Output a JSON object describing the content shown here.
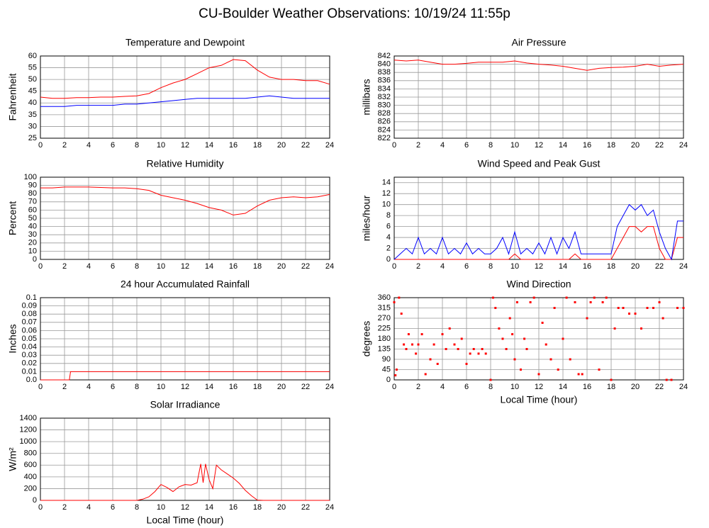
{
  "title": "CU-Boulder Weather Observations: 10/19/24 11:55p",
  "chart_data": [
    {
      "type": "line",
      "title": "Temperature and Dewpoint",
      "y_label": "Fahrenheit",
      "x": [
        0,
        1,
        2,
        3,
        4,
        5,
        6,
        7,
        8,
        9,
        10,
        11,
        12,
        13,
        14,
        15,
        16,
        17,
        18,
        19,
        20,
        21,
        22,
        23,
        24
      ],
      "series": [
        {
          "color": "#ff0000",
          "values": [
            42.5,
            42,
            42,
            42.3,
            42.3,
            42.5,
            42.5,
            42.8,
            43,
            44,
            46.5,
            48.5,
            50,
            52.5,
            55,
            56,
            58.5,
            58,
            54,
            51,
            50,
            50,
            49.5,
            49.5,
            48
          ]
        },
        {
          "color": "#0000ff",
          "values": [
            38.5,
            38.5,
            38.5,
            39,
            39,
            39,
            39,
            39.5,
            39.5,
            40,
            40.5,
            41,
            41.5,
            42,
            42,
            42,
            42,
            42,
            42.5,
            43,
            42.5,
            42,
            42,
            42,
            42
          ]
        }
      ],
      "xlim": [
        0,
        24
      ],
      "xticks": [
        0,
        2,
        4,
        6,
        8,
        10,
        12,
        14,
        16,
        18,
        20,
        22,
        24
      ],
      "ylim": [
        25,
        60
      ],
      "yticks": [
        25,
        30,
        35,
        40,
        45,
        50,
        55,
        60
      ],
      "grid": true
    },
    {
      "type": "line",
      "title": "Air Pressure",
      "y_label": "millibars",
      "x": [
        0,
        1,
        2,
        3,
        4,
        5,
        6,
        7,
        8,
        9,
        10,
        11,
        12,
        13,
        14,
        15,
        16,
        17,
        18,
        19,
        20,
        21,
        22,
        23,
        24
      ],
      "series": [
        {
          "color": "#ff0000",
          "values": [
            841,
            840.8,
            841,
            840.5,
            840,
            840,
            840.2,
            840.5,
            840.5,
            840.5,
            840.8,
            840.3,
            840,
            839.8,
            839.5,
            839,
            838.5,
            839,
            839.2,
            839.3,
            839.5,
            840,
            839.5,
            839.8,
            840
          ]
        }
      ],
      "xlim": [
        0,
        24
      ],
      "xticks": [
        0,
        2,
        4,
        6,
        8,
        10,
        12,
        14,
        16,
        18,
        20,
        22,
        24
      ],
      "ylim": [
        822,
        842
      ],
      "yticks": [
        822,
        824,
        826,
        828,
        830,
        832,
        834,
        836,
        838,
        840,
        842
      ],
      "grid": true
    },
    {
      "type": "line",
      "title": "Relative Humidity",
      "y_label": "Percent",
      "x": [
        0,
        1,
        2,
        3,
        4,
        5,
        6,
        7,
        8,
        9,
        10,
        11,
        12,
        13,
        14,
        15,
        16,
        17,
        18,
        19,
        20,
        21,
        22,
        23,
        24
      ],
      "series": [
        {
          "color": "#ff0000",
          "values": [
            87,
            87,
            88,
            88,
            88,
            87.5,
            87,
            87,
            86,
            84,
            78,
            75,
            72,
            68,
            63,
            60,
            54,
            56,
            65,
            72,
            75,
            76,
            75,
            76,
            79
          ]
        }
      ],
      "xlim": [
        0,
        24
      ],
      "xticks": [
        0,
        2,
        4,
        6,
        8,
        10,
        12,
        14,
        16,
        18,
        20,
        22,
        24
      ],
      "ylim": [
        0,
        100
      ],
      "yticks": [
        0,
        10,
        20,
        30,
        40,
        50,
        60,
        70,
        80,
        90,
        100
      ],
      "grid": true
    },
    {
      "type": "line",
      "title": "Wind Speed and Peak Gust",
      "y_label": "miles/hour",
      "x": [
        0,
        0.5,
        1,
        1.5,
        2,
        2.5,
        3,
        3.5,
        4,
        4.5,
        5,
        5.5,
        6,
        6.5,
        7,
        7.5,
        8,
        8.5,
        9,
        9.5,
        10,
        10.5,
        11,
        11.5,
        12,
        12.5,
        13,
        13.5,
        14,
        14.5,
        15,
        15.5,
        16,
        16.5,
        17,
        17.5,
        18,
        18.5,
        19,
        19.5,
        20,
        20.5,
        21,
        21.5,
        22,
        22.5,
        23,
        23.5,
        24
      ],
      "series": [
        {
          "color": "#ff0000",
          "values": [
            0,
            0,
            0,
            0,
            0,
            0,
            0,
            0,
            0,
            0,
            0,
            0,
            0,
            0,
            0,
            0,
            0,
            0,
            0,
            0,
            1,
            0,
            0,
            0,
            0,
            0,
            0,
            0,
            0,
            0,
            1,
            0,
            0,
            0,
            0,
            0,
            0,
            2,
            4,
            6,
            6,
            5,
            6,
            6,
            2,
            0,
            0,
            4,
            4
          ]
        },
        {
          "color": "#0000ff",
          "values": [
            0,
            1,
            2,
            1,
            4,
            1,
            2,
            1,
            4,
            1,
            2,
            1,
            3,
            1,
            2,
            1,
            1,
            2,
            4,
            1,
            5,
            1,
            2,
            1,
            3,
            1,
            4,
            1,
            4,
            2,
            5,
            1,
            1,
            1,
            1,
            1,
            1,
            6,
            8,
            10,
            9,
            10,
            8,
            9,
            5,
            2,
            0,
            7,
            7
          ]
        }
      ],
      "xlim": [
        0,
        24
      ],
      "xticks": [
        0,
        2,
        4,
        6,
        8,
        10,
        12,
        14,
        16,
        18,
        20,
        22,
        24
      ],
      "ylim": [
        0,
        15
      ],
      "yticks": [
        0,
        2,
        4,
        6,
        8,
        10,
        12,
        14
      ],
      "grid": true
    },
    {
      "type": "line",
      "title": "24 hour Accumulated Rainfall",
      "y_label": "Inches",
      "x": [
        0,
        2.4,
        2.5,
        24
      ],
      "series": [
        {
          "color": "#ff0000",
          "values": [
            0,
            0,
            0.01,
            0.01
          ]
        }
      ],
      "xlim": [
        0,
        24
      ],
      "xticks": [
        0,
        2,
        4,
        6,
        8,
        10,
        12,
        14,
        16,
        18,
        20,
        22,
        24
      ],
      "ylim": [
        0,
        0.1
      ],
      "yticks": [
        {
          "value": 0,
          "label": "0.0"
        },
        0.01,
        0.02,
        0.03,
        0.04,
        0.05,
        0.06,
        0.07,
        0.08,
        0.09,
        0.1
      ],
      "grid": true
    },
    {
      "type": "scatter",
      "title": "Wind Direction",
      "y_label": "degrees",
      "x_label": "Local Time (hour)",
      "x": [
        0,
        0.1,
        0.2,
        0.4,
        0.6,
        0.8,
        1,
        1.2,
        1.5,
        1.8,
        2,
        2.3,
        2.6,
        3,
        3.3,
        3.6,
        4,
        4.3,
        4.6,
        5,
        5.3,
        5.6,
        6,
        6.3,
        6.6,
        7,
        7.3,
        7.6,
        8,
        8.2,
        8.4,
        8.7,
        9,
        9.3,
        9.6,
        9.8,
        10,
        10.2,
        10.5,
        10.8,
        11,
        11.3,
        11.6,
        12,
        12.3,
        12.6,
        13,
        13.3,
        13.6,
        14,
        14.3,
        14.6,
        15,
        15.3,
        15.6,
        16,
        16.3,
        16.6,
        17,
        17.3,
        17.6,
        18,
        18.3,
        18.6,
        19,
        19.5,
        20,
        20.5,
        21,
        21.5,
        22,
        22.3,
        22.6,
        23,
        23.5,
        24
      ],
      "series": [
        {
          "color": "#ff0000",
          "values": [
            340,
            20,
            45,
            360,
            290,
            155,
            135,
            200,
            155,
            115,
            155,
            200,
            25,
            90,
            155,
            70,
            200,
            135,
            225,
            155,
            135,
            180,
            70,
            115,
            135,
            115,
            135,
            115,
            0,
            360,
            315,
            225,
            180,
            135,
            270,
            200,
            90,
            340,
            45,
            180,
            135,
            340,
            360,
            25,
            250,
            155,
            90,
            315,
            45,
            180,
            360,
            90,
            340,
            25,
            25,
            270,
            340,
            360,
            45,
            340,
            360,
            0,
            225,
            315,
            315,
            290,
            290,
            225,
            315,
            315,
            340,
            270,
            0,
            0,
            315,
            315
          ]
        }
      ],
      "xlim": [
        0,
        24
      ],
      "xticks": [
        0,
        2,
        4,
        6,
        8,
        10,
        12,
        14,
        16,
        18,
        20,
        22,
        24
      ],
      "ylim": [
        0,
        360
      ],
      "yticks": [
        0,
        45,
        90,
        135,
        180,
        225,
        270,
        315,
        360
      ],
      "grid": true
    },
    {
      "type": "line",
      "title": "Solar Irradiance",
      "y_label": "W/m²",
      "x_label": "Local Time (hour)",
      "x": [
        0,
        8,
        8.5,
        9,
        9.5,
        10,
        10.5,
        11,
        11.5,
        12,
        12.5,
        13,
        13.3,
        13.5,
        13.7,
        14,
        14.3,
        14.6,
        15,
        15.5,
        16,
        16.5,
        17,
        17.5,
        18,
        18.5,
        24
      ],
      "series": [
        {
          "color": "#ff0000",
          "values": [
            0,
            0,
            20,
            60,
            150,
            270,
            220,
            150,
            230,
            270,
            260,
            300,
            620,
            300,
            620,
            350,
            200,
            600,
            520,
            450,
            380,
            290,
            170,
            80,
            5,
            0,
            0
          ]
        }
      ],
      "xlim": [
        0,
        24
      ],
      "xticks": [
        0,
        2,
        4,
        6,
        8,
        10,
        12,
        14,
        16,
        18,
        20,
        22,
        24
      ],
      "ylim": [
        0,
        1400
      ],
      "yticks": [
        0,
        200,
        400,
        600,
        800,
        1000,
        1200,
        1400
      ],
      "grid": true
    }
  ]
}
